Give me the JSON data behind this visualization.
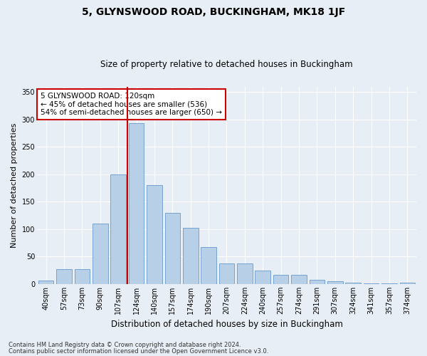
{
  "title": "5, GLYNSWOOD ROAD, BUCKINGHAM, MK18 1JF",
  "subtitle": "Size of property relative to detached houses in Buckingham",
  "xlabel": "Distribution of detached houses by size in Buckingham",
  "ylabel": "Number of detached properties",
  "footnote1": "Contains HM Land Registry data © Crown copyright and database right 2024.",
  "footnote2": "Contains public sector information licensed under the Open Government Licence v3.0.",
  "annotation_line1": "5 GLYNSWOOD ROAD: 120sqm",
  "annotation_line2": "← 45% of detached houses are smaller (536)",
  "annotation_line3": "54% of semi-detached houses are larger (650) →",
  "bar_color": "#b8cfe8",
  "bar_edgecolor": "#6699cc",
  "highlight_color": "#cc0000",
  "categories": [
    "40sqm",
    "57sqm",
    "73sqm",
    "90sqm",
    "107sqm",
    "124sqm",
    "140sqm",
    "157sqm",
    "174sqm",
    "190sqm",
    "207sqm",
    "224sqm",
    "240sqm",
    "257sqm",
    "274sqm",
    "291sqm",
    "307sqm",
    "324sqm",
    "341sqm",
    "357sqm",
    "374sqm"
  ],
  "values": [
    6,
    27,
    27,
    110,
    200,
    293,
    180,
    130,
    103,
    68,
    37,
    37,
    25,
    17,
    17,
    8,
    5,
    3,
    1,
    1,
    2
  ],
  "red_line_x": 4.5,
  "ylim": [
    0,
    360
  ],
  "yticks": [
    0,
    50,
    100,
    150,
    200,
    250,
    300,
    350
  ],
  "background_color": "#e8eef6",
  "grid_color": "#ffffff",
  "title_fontsize": 10,
  "subtitle_fontsize": 8.5,
  "tick_fontsize": 7,
  "ylabel_fontsize": 8,
  "xlabel_fontsize": 8.5
}
